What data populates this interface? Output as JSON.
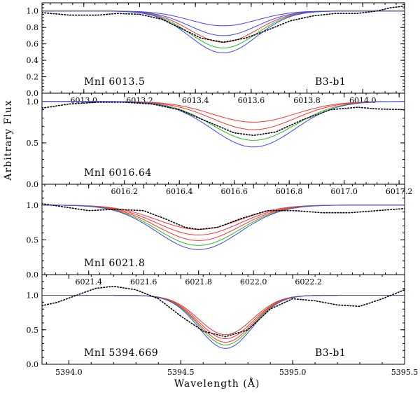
{
  "figure": {
    "ylabel": "Arbitrary Flux",
    "xlabel": "Wavelength (Å)"
  },
  "chart_data": [
    {
      "type": "line",
      "id": "p1",
      "title": "",
      "line_label": "MnI 6013.5",
      "star_label": "B3-b1",
      "xlim": [
        6012.85,
        6014.15
      ],
      "ylim": [
        0.0,
        1.1
      ],
      "top_ticks": [
        "6013.0",
        "6013.2",
        "6013.4",
        "6013.6",
        "6013.8",
        "6014.0"
      ],
      "top_tick_values": [
        6013.0,
        6013.2,
        6013.4,
        6013.6,
        6013.8,
        6014.0
      ],
      "yticks": [
        "0.0",
        "0.2",
        "0.4",
        "0.6",
        "0.8",
        "1.0"
      ],
      "ytick_values": [
        0.0,
        0.2,
        0.4,
        0.6,
        0.8,
        1.0
      ],
      "line_center": 6013.5,
      "line_sigma": 0.12,
      "series": [
        {
          "name": "model 1",
          "color": "#4040ff",
          "depth": 0.18,
          "style": "solid"
        },
        {
          "name": "model 2",
          "color": "#4040ff",
          "depth": 0.3,
          "style": "solid"
        },
        {
          "name": "model 3",
          "color": "#ff3030",
          "depth": 0.38,
          "style": "solid"
        },
        {
          "name": "model 4",
          "color": "#20c020",
          "depth": 0.45,
          "style": "solid"
        },
        {
          "name": "model 5",
          "color": "#4040ff",
          "depth": 0.51,
          "style": "solid"
        }
      ],
      "observed": {
        "name": "observed",
        "color": "#000000",
        "x": [
          6012.85,
          6012.95,
          6013.05,
          6013.12,
          6013.2,
          6013.28,
          6013.36,
          6013.42,
          6013.5,
          6013.58,
          6013.66,
          6013.74,
          6013.82,
          6013.9,
          6013.98,
          6014.05,
          6014.1,
          6014.15
        ],
        "y": [
          0.98,
          0.95,
          0.95,
          0.97,
          0.96,
          0.9,
          0.77,
          0.67,
          0.62,
          0.67,
          0.77,
          0.88,
          0.94,
          0.97,
          0.97,
          1.0,
          1.04,
          1.06
        ]
      }
    },
    {
      "type": "line",
      "id": "p2",
      "line_label": "MnI 6016.64",
      "star_label": "",
      "xlim": [
        6015.9,
        6017.22
      ],
      "ylim": [
        0.0,
        1.1
      ],
      "top_ticks": [
        "6016.2",
        "6016.4",
        "6016.6",
        "6016.8",
        "6017.0",
        "6017.2"
      ],
      "top_tick_values": [
        6016.2,
        6016.4,
        6016.6,
        6016.8,
        6017.0,
        6017.2
      ],
      "yticks": [
        "0.0",
        "0.5",
        "1.0"
      ],
      "ytick_values": [
        0.0,
        0.5,
        1.0
      ],
      "line_center": 6016.67,
      "line_sigma": 0.15,
      "series": [
        {
          "name": "model 1",
          "color": "#ff3030",
          "depth": 0.25,
          "style": "solid"
        },
        {
          "name": "model 2",
          "color": "#ff3030",
          "depth": 0.34,
          "style": "solid"
        },
        {
          "name": "model 3",
          "color": "#20c020",
          "depth": 0.47,
          "style": "solid"
        },
        {
          "name": "model 4",
          "color": "#4040ff",
          "depth": 0.55,
          "style": "solid"
        }
      ],
      "observed": {
        "name": "observed",
        "color": "#000000",
        "x": [
          6015.9,
          6016.0,
          6016.1,
          6016.2,
          6016.3,
          6016.4,
          6016.5,
          6016.6,
          6016.67,
          6016.75,
          6016.85,
          6016.95,
          6017.05,
          6017.12,
          6017.22
        ],
        "y": [
          0.92,
          0.97,
          0.99,
          0.99,
          0.97,
          0.9,
          0.76,
          0.62,
          0.59,
          0.63,
          0.78,
          0.9,
          0.93,
          0.91,
          0.9
        ]
      }
    },
    {
      "type": "line",
      "id": "p3",
      "line_label": "MnI 6021.8",
      "star_label": "",
      "xlim": [
        6021.23,
        6022.55
      ],
      "ylim": [
        0.0,
        1.3
      ],
      "top_ticks": [
        "6021.4",
        "6021.6",
        "6021.8",
        "6022.0",
        "6022.2"
      ],
      "top_tick_values": [
        6021.4,
        6021.6,
        6021.8,
        6022.0,
        6022.2
      ],
      "yticks": [
        "0.0",
        "0.5",
        "1.0"
      ],
      "ytick_values": [
        0.0,
        0.5,
        1.0
      ],
      "line_center": 6021.8,
      "line_sigma": 0.15,
      "series": [
        {
          "name": "model 1",
          "color": "#ff3030",
          "depth": 0.35,
          "style": "solid"
        },
        {
          "name": "model 2",
          "color": "#ff3030",
          "depth": 0.43,
          "style": "solid"
        },
        {
          "name": "model 3",
          "color": "#ff3030",
          "depth": 0.51,
          "style": "solid"
        },
        {
          "name": "model 4",
          "color": "#20c020",
          "depth": 0.58,
          "style": "solid"
        },
        {
          "name": "model 5",
          "color": "#4040ff",
          "depth": 0.64,
          "style": "solid"
        }
      ],
      "observed": {
        "name": "observed",
        "color": "#000000",
        "x": [
          6021.23,
          6021.3,
          6021.4,
          6021.5,
          6021.6,
          6021.68,
          6021.75,
          6021.8,
          6021.87,
          6021.95,
          6022.05,
          6022.15,
          6022.25,
          6022.35,
          6022.45,
          6022.55
        ],
        "y": [
          1.02,
          0.98,
          0.92,
          0.94,
          0.92,
          0.8,
          0.68,
          0.65,
          0.68,
          0.8,
          0.92,
          0.92,
          0.89,
          0.89,
          0.92,
          0.95
        ]
      }
    },
    {
      "type": "line",
      "id": "p4",
      "line_label": "MnI  5394.669",
      "star_label": "B3-b1",
      "xlim": [
        5393.88,
        5395.5
      ],
      "ylim": [
        0.0,
        1.3
      ],
      "xticks": [
        "5394.0",
        "5394.5",
        "5395.0",
        "5395.5"
      ],
      "xtick_values": [
        5394.0,
        5394.5,
        5395.0,
        5395.5
      ],
      "yticks": [
        "0.0",
        "0.5",
        "1.0"
      ],
      "ytick_values": [
        0.0,
        0.5,
        1.0
      ],
      "line_center": 5394.7,
      "line_sigma": 0.12,
      "series": [
        {
          "name": "model 1",
          "color": "#ff3030",
          "depth": 0.57,
          "style": "solid"
        },
        {
          "name": "model 2",
          "color": "#ff3030",
          "depth": 0.63,
          "style": "solid"
        },
        {
          "name": "model 3",
          "color": "#ff3030",
          "depth": 0.68,
          "style": "solid"
        },
        {
          "name": "model 4",
          "color": "#20c020",
          "depth": 0.72,
          "style": "solid"
        },
        {
          "name": "model 5",
          "color": "#4040ff",
          "depth": 0.77,
          "style": "solid"
        }
      ],
      "observed": {
        "name": "observed",
        "color": "#000000",
        "x": [
          5393.88,
          5393.95,
          5394.05,
          5394.12,
          5394.2,
          5394.3,
          5394.4,
          5394.5,
          5394.6,
          5394.7,
          5394.8,
          5394.9,
          5395.0,
          5395.1,
          5395.2,
          5395.3,
          5395.4,
          5395.5
        ],
        "y": [
          0.85,
          0.9,
          1.02,
          1.1,
          1.13,
          1.08,
          0.95,
          0.7,
          0.48,
          0.4,
          0.5,
          0.8,
          0.95,
          0.92,
          0.86,
          0.84,
          0.95,
          1.08
        ]
      }
    }
  ]
}
